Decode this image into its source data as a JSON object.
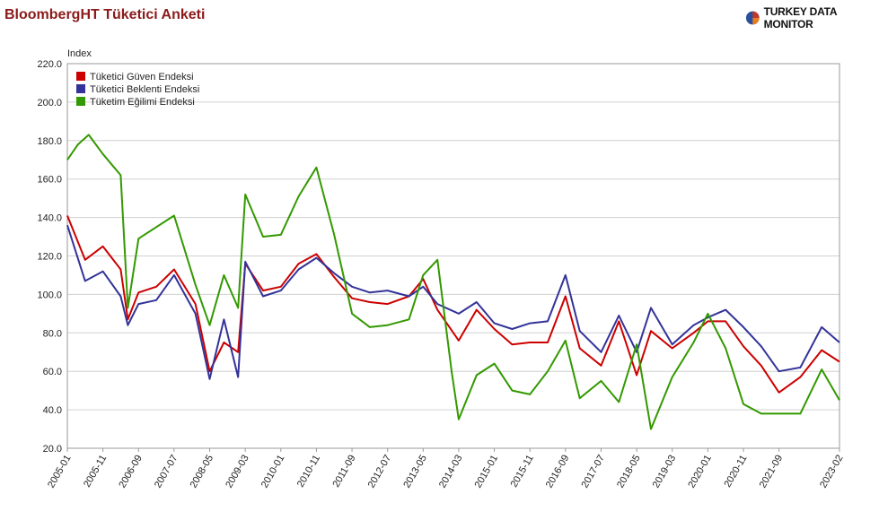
{
  "header": {
    "title": "BloombergHT Tüketici Anketi",
    "brand": "TURKEY DATA MONITOR",
    "logo_icon": "pie-globe-icon"
  },
  "chart_data": {
    "type": "line",
    "title": "BloombergHT Tüketici Anketi",
    "ylabel": "Index",
    "xlabel": "",
    "ylim": [
      20,
      220
    ],
    "yticks": [
      "20.0",
      "40.0",
      "60.0",
      "80.0",
      "100.0",
      "120.0",
      "140.0",
      "160.0",
      "180.0",
      "200.0",
      "220.0"
    ],
    "xticks": [
      "2005-01",
      "2005-11",
      "2006-09",
      "2007-07",
      "2008-05",
      "2009-03",
      "2010-01",
      "2010-11",
      "2011-09",
      "2012-07",
      "2013-05",
      "2014-03",
      "2015-01",
      "2015-11",
      "2016-09",
      "2017-07",
      "2018-05",
      "2019-03",
      "2020-01",
      "2020-11",
      "2021-09",
      "2023-02"
    ],
    "grid": true,
    "legend_position": "top-left",
    "series": [
      {
        "name": "Tüketici Güven Endeksi",
        "color": "#cc0000",
        "x": [
          "2005-01",
          "2005-06",
          "2005-11",
          "2006-04",
          "2006-06",
          "2006-09",
          "2007-02",
          "2007-07",
          "2008-01",
          "2008-05",
          "2008-09",
          "2009-01",
          "2009-03",
          "2009-08",
          "2010-01",
          "2010-06",
          "2010-11",
          "2011-04",
          "2011-09",
          "2012-02",
          "2012-07",
          "2013-01",
          "2013-05",
          "2013-09",
          "2014-03",
          "2014-08",
          "2015-01",
          "2015-06",
          "2015-11",
          "2016-04",
          "2016-09",
          "2017-01",
          "2017-07",
          "2017-12",
          "2018-05",
          "2018-09",
          "2019-03",
          "2019-09",
          "2020-01",
          "2020-06",
          "2020-11",
          "2021-04",
          "2021-09",
          "2022-03",
          "2022-09",
          "2023-02"
        ],
        "values": [
          141,
          118,
          125,
          113,
          87,
          101,
          104,
          113,
          95,
          60,
          75,
          70,
          116,
          102,
          104,
          116,
          121,
          109,
          98,
          96,
          95,
          99,
          108,
          92,
          76,
          92,
          82,
          74,
          75,
          75,
          99,
          72,
          63,
          86,
          58,
          81,
          72,
          80,
          86,
          86,
          73,
          63,
          49,
          57,
          71,
          65
        ]
      },
      {
        "name": "Tüketici Beklenti Endeksi",
        "color": "#333399",
        "x": [
          "2005-01",
          "2005-06",
          "2005-11",
          "2006-04",
          "2006-06",
          "2006-09",
          "2007-02",
          "2007-07",
          "2008-01",
          "2008-05",
          "2008-09",
          "2009-01",
          "2009-03",
          "2009-08",
          "2010-01",
          "2010-06",
          "2010-11",
          "2011-04",
          "2011-09",
          "2012-02",
          "2012-07",
          "2013-01",
          "2013-05",
          "2013-09",
          "2014-03",
          "2014-08",
          "2015-01",
          "2015-06",
          "2015-11",
          "2016-04",
          "2016-09",
          "2017-01",
          "2017-07",
          "2017-12",
          "2018-05",
          "2018-09",
          "2019-03",
          "2019-09",
          "2020-01",
          "2020-06",
          "2020-11",
          "2021-04",
          "2021-09",
          "2022-03",
          "2022-09",
          "2023-02"
        ],
        "values": [
          136,
          107,
          112,
          99,
          84,
          95,
          97,
          110,
          90,
          56,
          87,
          57,
          117,
          99,
          102,
          113,
          119,
          111,
          104,
          101,
          102,
          99,
          104,
          95,
          90,
          96,
          85,
          82,
          85,
          86,
          110,
          81,
          70,
          89,
          70,
          93,
          74,
          84,
          88,
          92,
          83,
          73,
          60,
          62,
          83,
          75
        ]
      },
      {
        "name": "Tüketim Eğilimi Endeksi",
        "color": "#339900",
        "x": [
          "2005-01",
          "2005-04",
          "2005-07",
          "2005-11",
          "2006-04",
          "2006-06",
          "2006-09",
          "2007-02",
          "2007-07",
          "2008-01",
          "2008-05",
          "2008-09",
          "2009-01",
          "2009-03",
          "2009-08",
          "2010-01",
          "2010-06",
          "2010-11",
          "2011-04",
          "2011-09",
          "2012-02",
          "2012-07",
          "2013-01",
          "2013-05",
          "2013-09",
          "2014-01",
          "2014-03",
          "2014-08",
          "2015-01",
          "2015-06",
          "2015-11",
          "2016-04",
          "2016-09",
          "2017-01",
          "2017-07",
          "2017-12",
          "2018-05",
          "2018-09",
          "2019-03",
          "2019-09",
          "2020-01",
          "2020-06",
          "2020-11",
          "2021-04",
          "2021-09",
          "2022-03",
          "2022-09",
          "2023-02"
        ],
        "values": [
          170,
          178,
          183,
          173,
          162,
          93,
          129,
          135,
          141,
          105,
          84,
          110,
          93,
          152,
          130,
          131,
          151,
          166,
          131,
          90,
          83,
          84,
          87,
          110,
          118,
          60,
          35,
          58,
          64,
          50,
          48,
          60,
          76,
          46,
          55,
          44,
          74,
          30,
          57,
          75,
          90,
          72,
          43,
          38,
          38,
          38,
          61,
          45
        ]
      }
    ]
  }
}
